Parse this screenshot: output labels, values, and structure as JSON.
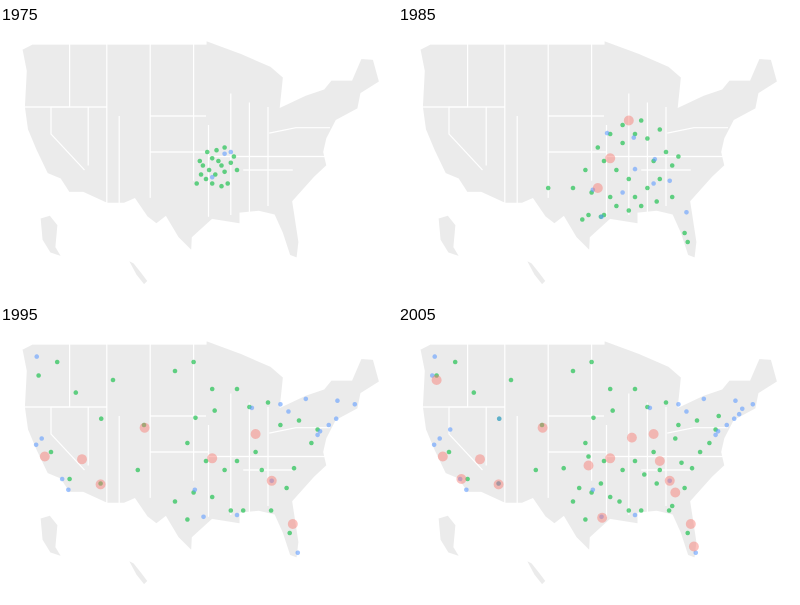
{
  "panels": [
    {
      "title": "1975",
      "series": [
        {
          "color": "#00ba38",
          "lon": [
            -94,
            -93,
            -92.5,
            -94.5,
            -93.5,
            -92,
            -91,
            -90.5,
            -95.5,
            -96,
            -94.8,
            -93.3,
            -92,
            -95,
            -91.5,
            -92.5,
            -96.5,
            -90,
            -94,
            -95.8
          ],
          "lat": [
            36.3,
            36,
            35.5,
            35,
            34.5,
            34.8,
            35.8,
            36.5,
            35.5,
            36,
            37,
            37.2,
            37.5,
            34,
            33.5,
            33.2,
            33.5,
            35,
            33.5,
            34.5
          ]
        },
        {
          "color": "#619cff",
          "lon": [
            -92,
            -91,
            -94
          ],
          "lat": [
            36.8,
            37,
            34.2
          ]
        }
      ]
    },
    {
      "title": "1985",
      "series": [
        {
          "color": "#00ba38",
          "lon": [
            -97,
            -95,
            -93,
            -90,
            -88,
            -86,
            -87,
            -85,
            -88,
            -90,
            -92,
            -94,
            -96,
            -98,
            -100,
            -94,
            -91,
            -89,
            -86.5,
            -84,
            -82,
            -81.5,
            -84,
            -83,
            -86,
            -89,
            -92,
            -97.5,
            -98.5,
            -95.5,
            -104,
            -91,
            -93,
            -95
          ],
          "lat": [
            32.5,
            30,
            31,
            32,
            33,
            34,
            36,
            37,
            38.5,
            39,
            38,
            39,
            37.5,
            35,
            33,
            32,
            30.5,
            31,
            31.5,
            32,
            28,
            27,
            35.5,
            36.5,
            39.5,
            40.5,
            40,
            30,
            29.5,
            29.8,
            33,
            34,
            35,
            36
          ]
        },
        {
          "color": "#619cff",
          "lon": [
            -92,
            -90,
            -87,
            -96.8,
            -84.4,
            -86.8,
            -81.7,
            -95.4,
            -90.2,
            -94.5
          ],
          "lat": [
            32.5,
            35.1,
            33.5,
            32.8,
            33.8,
            36.2,
            30.3,
            29.8,
            38.6,
            39.1
          ]
        },
        {
          "color": "#f8766d",
          "lon": [
            -94,
            -96,
            -91
          ],
          "lat": [
            36.3,
            33,
            40.5
          ]
        }
      ]
    },
    {
      "title": "1995",
      "series": [
        {
          "color": "#00ba38",
          "lon": [
            -120,
            -117,
            -112,
            -106,
            -105,
            -111.9,
            -116,
            -100,
            -97,
            -96.7,
            -93.6,
            -88,
            -85,
            -83,
            -80,
            -78,
            -77,
            -80.8,
            -82,
            -84.5,
            -89,
            -91,
            -94,
            -97,
            -98,
            -100,
            -86,
            -87,
            -90,
            -92,
            -95,
            -98,
            -94,
            -90,
            -110,
            -119,
            -122,
            -81.5
          ],
          "lat": [
            37,
            34,
            33.5,
            35,
            40,
            40.7,
            43.6,
            46,
            47,
            40.8,
            41.6,
            42,
            42.5,
            40,
            40.5,
            38,
            39.5,
            35.2,
            33,
            30.5,
            30.5,
            30.5,
            32,
            32.5,
            29.5,
            31.5,
            35,
            37,
            36,
            35,
            36,
            38,
            44,
            44,
            45,
            47,
            45.5,
            28
          ]
        },
        {
          "color": "#619cff",
          "lon": [
            -118.2,
            -122.4,
            -121.5,
            -117.2,
            -122.3,
            -74,
            -75.2,
            -71,
            -77,
            -76.6,
            -80.2,
            -84.4,
            -87.6,
            -83,
            -90,
            -95.4,
            -96.8,
            -81.7,
            -73.8,
            -78.9
          ],
          "lat": [
            34,
            37.8,
            38.5,
            32.8,
            47.6,
            40.7,
            40,
            42.3,
            38.9,
            39.3,
            25.8,
            33.8,
            41.9,
            42.3,
            30,
            29.8,
            32.8,
            41.5,
            42.7,
            42.9
          ]
        },
        {
          "color": "#f8766d",
          "lon": [
            -94,
            -115,
            -112,
            -84.4,
            -87,
            -81,
            -121,
            -104.9
          ],
          "lat": [
            36.3,
            36.2,
            33.4,
            33.8,
            39,
            29,
            36.5,
            39.7
          ]
        }
      ]
    },
    {
      "title": "2005",
      "series": [
        {
          "color": "#00ba38",
          "lon": [
            -120,
            -117,
            -112,
            -106,
            -105,
            -111.9,
            -116,
            -100,
            -97,
            -96.7,
            -93.6,
            -88,
            -85,
            -83,
            -80,
            -78,
            -77,
            -80.8,
            -82,
            -84.5,
            -89,
            -91,
            -94,
            -97,
            -98,
            -100,
            -86,
            -87,
            -90,
            -92,
            -95,
            -98,
            -94,
            -90,
            -110,
            -119,
            -122,
            -81.5,
            -83.5,
            -86.5,
            -88.5,
            -92.5,
            -95.5,
            -97.5,
            -99,
            -101.5,
            -84,
            -82.5,
            -79.5,
            -76.5
          ],
          "lat": [
            37,
            34,
            33.5,
            35,
            40,
            40.7,
            43.6,
            46,
            47,
            40.8,
            41.6,
            42,
            42.5,
            40,
            40.5,
            38,
            39.5,
            35.2,
            33,
            30.5,
            30.5,
            30.5,
            32,
            32.5,
            29.5,
            31.5,
            35,
            37,
            36,
            35,
            36,
            38,
            44,
            44,
            45,
            47,
            45.5,
            28,
            38.5,
            33.5,
            34.5,
            31.5,
            33.5,
            36.5,
            33,
            35.2,
            31,
            35.8,
            37,
            41
          ]
        },
        {
          "color": "#619cff",
          "lon": [
            -118.2,
            -122.4,
            -121.5,
            -117.2,
            -122.3,
            -74,
            -75.2,
            -71,
            -77,
            -76.6,
            -80.2,
            -84.4,
            -87.6,
            -83,
            -90,
            -95.4,
            -96.8,
            -81.7,
            -73.8,
            -78.9,
            -122.7,
            -119.8,
            -112,
            -111.9,
            -73.2,
            -72.7
          ],
          "lat": [
            34,
            37.8,
            38.5,
            32.8,
            47.6,
            40.7,
            40,
            42.3,
            38.9,
            39.3,
            25.8,
            33.8,
            41.9,
            42.3,
            30,
            29.8,
            32.8,
            41.5,
            42.7,
            42.9,
            45.5,
            39.5,
            33.5,
            40.7,
            41.2,
            41.8
          ]
        },
        {
          "color": "#f8766d",
          "lon": [
            -94,
            -115,
            -112,
            -84.4,
            -87,
            -81,
            -121,
            -104.9,
            -122,
            -118,
            -97.5,
            -90.5,
            -86,
            -80.5,
            -95.3,
            -83.5
          ],
          "lat": [
            36.3,
            36.2,
            33.4,
            33.8,
            39,
            29,
            36.5,
            39.7,
            45,
            34,
            35.5,
            38.6,
            36,
            26.5,
            29.7,
            32.5
          ]
        }
      ]
    }
  ]
}
